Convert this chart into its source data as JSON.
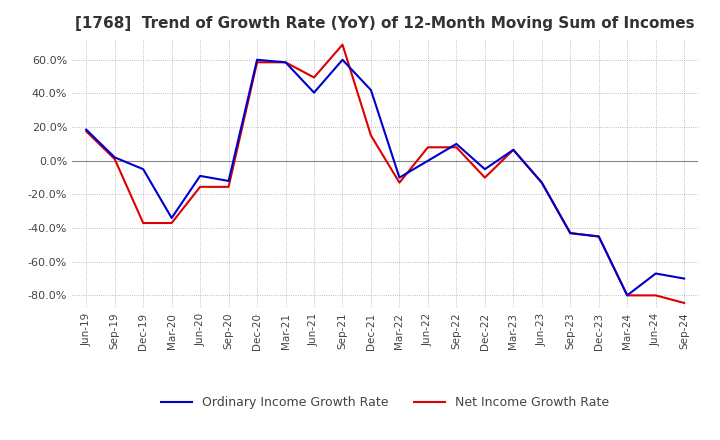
{
  "title": "[1768]  Trend of Growth Rate (YoY) of 12-Month Moving Sum of Incomes",
  "title_fontsize": 11,
  "ylim": [
    -0.875,
    0.72
  ],
  "yticks": [
    -0.8,
    -0.6,
    -0.4,
    -0.2,
    0.0,
    0.2,
    0.4,
    0.6
  ],
  "background_color": "#ffffff",
  "grid_color": "#aaaaaa",
  "ordinary_color": "#0000cc",
  "net_color": "#dd0000",
  "legend_labels": [
    "Ordinary Income Growth Rate",
    "Net Income Growth Rate"
  ],
  "dates": [
    "Jun-19",
    "Sep-19",
    "Dec-19",
    "Mar-20",
    "Jun-20",
    "Sep-20",
    "Dec-20",
    "Mar-21",
    "Jun-21",
    "Sep-21",
    "Dec-21",
    "Mar-22",
    "Jun-22",
    "Sep-22",
    "Dec-22",
    "Mar-23",
    "Jun-23",
    "Sep-23",
    "Dec-23",
    "Mar-24",
    "Jun-24",
    "Sep-24"
  ],
  "ordinary": [
    0.185,
    0.02,
    -0.05,
    -0.34,
    -0.09,
    -0.12,
    0.6,
    0.585,
    0.405,
    0.6,
    0.42,
    -0.1,
    0.0,
    0.1,
    -0.05,
    0.065,
    -0.13,
    -0.43,
    -0.45,
    -0.8,
    -0.67,
    -0.7
  ],
  "net": [
    0.175,
    0.01,
    -0.37,
    -0.37,
    -0.155,
    -0.155,
    0.585,
    0.585,
    0.495,
    0.69,
    0.15,
    -0.13,
    0.08,
    0.08,
    -0.1,
    0.065,
    -0.13,
    -0.43,
    -0.45,
    -0.8,
    -0.8,
    -0.845
  ]
}
